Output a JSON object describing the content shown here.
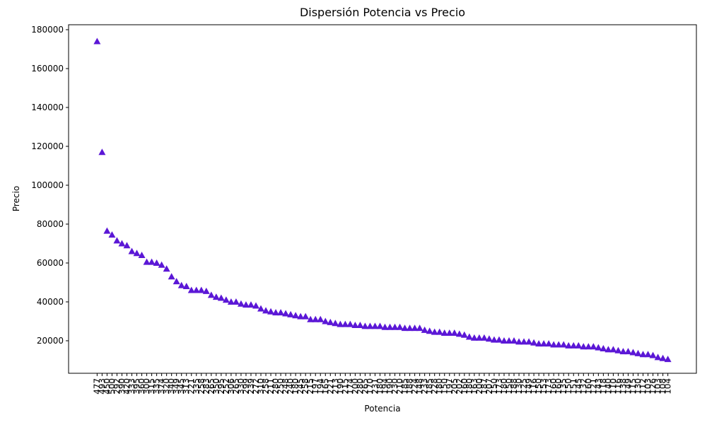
{
  "chart_data": {
    "type": "scatter",
    "title": "Dispersión Potencia vs Precio",
    "x_label": "Potencia",
    "y_label": "Precio",
    "marker": "triangle",
    "color": "#5b17d6",
    "categories": [
      "477",
      "493",
      "450",
      "500",
      "292",
      "390",
      "420",
      "333",
      "395",
      "360",
      "300",
      "315",
      "335",
      "374",
      "320",
      "340",
      "349",
      "345",
      "313",
      "221",
      "335",
      "258",
      "283",
      "265",
      "350",
      "295",
      "252",
      "306",
      "265",
      "330",
      "299",
      "239",
      "272",
      "310",
      "258",
      "211",
      "280",
      "250",
      "248",
      "240",
      "180",
      "245",
      "258",
      "215",
      "197",
      "194",
      "165",
      "221",
      "213",
      "190",
      "215",
      "174",
      "200",
      "280",
      "265",
      "170",
      "231",
      "180",
      "194",
      "190",
      "230",
      "210",
      "185",
      "188",
      "224",
      "148",
      "233",
      "185",
      "228",
      "180",
      "150",
      "197",
      "205",
      "202",
      "160",
      "180",
      "163",
      "200",
      "187",
      "207",
      "150",
      "173",
      "180",
      "150",
      "188",
      "130",
      "125",
      "149",
      "116",
      "150",
      "153",
      "173",
      "160",
      "160",
      "135",
      "150",
      "151",
      "145",
      "132",
      "160",
      "121",
      "143",
      "118",
      "140",
      "110",
      "116",
      "138",
      "149",
      "115",
      "130",
      "112",
      "103",
      "126",
      "103",
      "108",
      "104"
    ],
    "values": [
      174000,
      117000,
      76500,
      74500,
      71500,
      70000,
      69000,
      66000,
      65000,
      64000,
      60500,
      60500,
      60000,
      59000,
      57000,
      53000,
      50500,
      48500,
      48000,
      46000,
      46000,
      46000,
      45500,
      43500,
      42500,
      42000,
      41000,
      40000,
      40000,
      39000,
      38500,
      38500,
      38000,
      36500,
      35500,
      35000,
      34500,
      34500,
      34000,
      33500,
      33000,
      32500,
      32500,
      31000,
      31000,
      31000,
      30000,
      29500,
      29000,
      28500,
      28500,
      28500,
      28000,
      28000,
      27500,
      27500,
      27500,
      27500,
      27000,
      27000,
      27000,
      27000,
      26500,
      26500,
      26500,
      26500,
      25500,
      25000,
      24500,
      24500,
      24000,
      24000,
      24000,
      23500,
      23000,
      22000,
      21500,
      21500,
      21500,
      21000,
      20500,
      20500,
      20000,
      20000,
      20000,
      19500,
      19500,
      19500,
      19000,
      18500,
      18500,
      18500,
      18000,
      18000,
      18000,
      17500,
      17500,
      17500,
      17000,
      17000,
      17000,
      16500,
      16000,
      15500,
      15500,
      15000,
      14500,
      14500,
      14000,
      13500,
      13000,
      13000,
      12500,
      11500,
      11000,
      10500
    ],
    "ylim": [
      3275,
      182550
    ],
    "yticks": [
      20000,
      40000,
      60000,
      80000,
      100000,
      120000,
      140000,
      160000,
      180000
    ],
    "grid": false
  }
}
